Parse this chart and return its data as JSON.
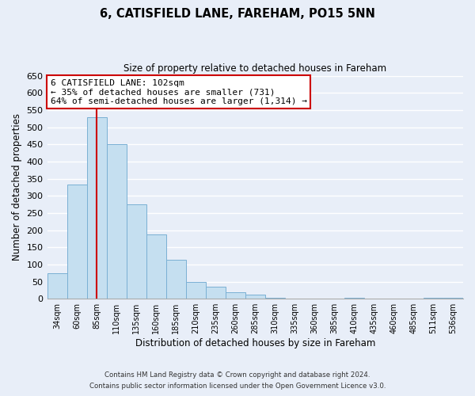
{
  "title": "6, CATISFIELD LANE, FAREHAM, PO15 5NN",
  "subtitle": "Size of property relative to detached houses in Fareham",
  "xlabel": "Distribution of detached houses by size in Fareham",
  "ylabel": "Number of detached properties",
  "bar_values": [
    75,
    333,
    528,
    450,
    275,
    188,
    113,
    50,
    35,
    20,
    13,
    3,
    0,
    0,
    0,
    2,
    0,
    0,
    0,
    2,
    2
  ],
  "categories": [
    "34sqm",
    "60sqm",
    "85sqm",
    "110sqm",
    "135sqm",
    "160sqm",
    "185sqm",
    "210sqm",
    "235sqm",
    "260sqm",
    "285sqm",
    "310sqm",
    "335sqm",
    "360sqm",
    "385sqm",
    "410sqm",
    "435sqm",
    "460sqm",
    "485sqm",
    "511sqm",
    "536sqm"
  ],
  "bar_color": "#c5dff0",
  "bar_edge_color": "#7ab0d4",
  "property_line_x": 2,
  "property_line_color": "#cc0000",
  "ylim": [
    0,
    650
  ],
  "yticks": [
    0,
    50,
    100,
    150,
    200,
    250,
    300,
    350,
    400,
    450,
    500,
    550,
    600,
    650
  ],
  "annotation_title": "6 CATISFIELD LANE: 102sqm",
  "annotation_line1": "← 35% of detached houses are smaller (731)",
  "annotation_line2": "64% of semi-detached houses are larger (1,314) →",
  "annotation_box_color": "#ffffff",
  "annotation_box_edge": "#cc0000",
  "footer1": "Contains HM Land Registry data © Crown copyright and database right 2024.",
  "footer2": "Contains public sector information licensed under the Open Government Licence v3.0.",
  "bg_color": "#e8eef8",
  "plot_bg_color": "#e8eef8",
  "grid_color": "#ffffff"
}
